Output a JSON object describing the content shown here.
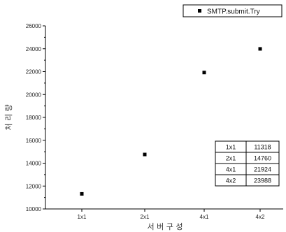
{
  "chart_data": {
    "type": "scatter",
    "categories": [
      "1x1",
      "2x1",
      "4x1",
      "4x2"
    ],
    "series": [
      {
        "name": "SMTP.submit.Try",
        "values": [
          11318,
          14760,
          21924,
          23988
        ]
      }
    ],
    "xlabel": "서 버 구 성",
    "ylabel": "처 리 량",
    "ylim": [
      10000,
      26000
    ],
    "yticks": [
      10000,
      12000,
      14000,
      16000,
      18000,
      20000,
      22000,
      24000,
      26000
    ],
    "grid": false,
    "legend": {
      "position": "top-right",
      "marker": "square"
    },
    "marker_color": "#000000",
    "table": {
      "position": "lower-right",
      "rows": [
        [
          "1x1",
          "11318"
        ],
        [
          "2x1",
          "14760"
        ],
        [
          "4x1",
          "21924"
        ],
        [
          "4x2",
          "23988"
        ]
      ]
    }
  }
}
